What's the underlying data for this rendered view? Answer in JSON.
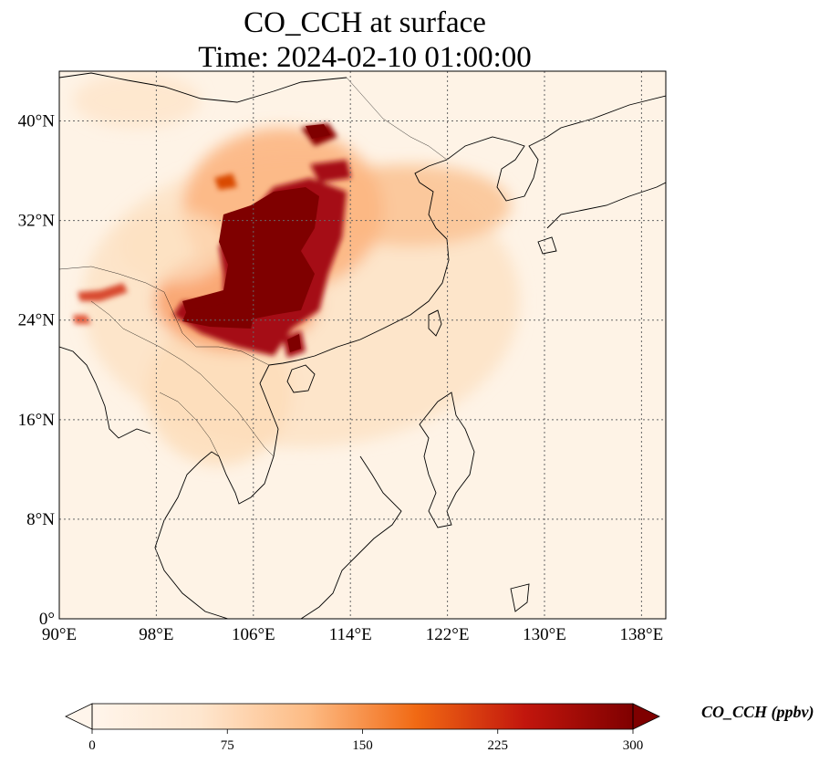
{
  "title": {
    "line1": "CO_CCH at surface",
    "line2": "Time: 2024-02-10 01:00:00"
  },
  "map": {
    "lon_range": [
      90,
      140
    ],
    "lat_range": [
      0,
      44
    ],
    "lon_ticks": [
      {
        "value": 90,
        "label": "90°E"
      },
      {
        "value": 98,
        "label": "98°E"
      },
      {
        "value": 106,
        "label": "106°E"
      },
      {
        "value": 114,
        "label": "114°E"
      },
      {
        "value": 122,
        "label": "122°E"
      },
      {
        "value": 130,
        "label": "130°E"
      },
      {
        "value": 138,
        "label": "138°E"
      }
    ],
    "lat_ticks": [
      {
        "value": 0,
        "label": "0°"
      },
      {
        "value": 8,
        "label": "8°N"
      },
      {
        "value": 16,
        "label": "16°N"
      },
      {
        "value": 24,
        "label": "24°N"
      },
      {
        "value": 32,
        "label": "32°N"
      },
      {
        "value": 40,
        "label": "40°N"
      }
    ],
    "gridlines": true
  },
  "colorbar": {
    "label": "CO_CCH (ppbv)",
    "min": 0,
    "max": 300,
    "extend": "both",
    "ticks": [
      {
        "value": 0,
        "label": "0"
      },
      {
        "value": 75,
        "label": "75"
      },
      {
        "value": 150,
        "label": "150"
      },
      {
        "value": 225,
        "label": "225"
      },
      {
        "value": 300,
        "label": "300"
      }
    ],
    "colors": [
      "#fff5eb",
      "#fdd0a2",
      "#fd8d3c",
      "#d94801",
      "#a50f15",
      "#7f0000"
    ]
  }
}
